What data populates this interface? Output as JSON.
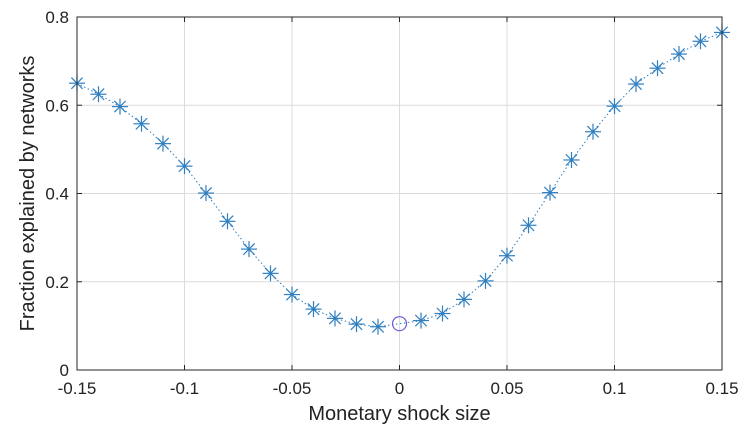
{
  "chart_data": {
    "type": "scatter",
    "title": "",
    "xlabel": "Monetary shock size",
    "ylabel": "Fraction explained by networks",
    "xlim": [
      -0.15,
      0.15
    ],
    "ylim": [
      0,
      0.8
    ],
    "x_ticks": [
      -0.15,
      -0.1,
      -0.05,
      0,
      0.05,
      0.1,
      0.15
    ],
    "x_tick_labels": [
      "-0.15",
      "-0.1",
      "-0.05",
      "0",
      "0.05",
      "0.1",
      "0.15"
    ],
    "y_ticks": [
      0,
      0.2,
      0.4,
      0.6,
      0.8
    ],
    "y_tick_labels": [
      "0",
      "0.2",
      "0.4",
      "0.6",
      "0.8"
    ],
    "grid": true,
    "legend": "none",
    "series": [
      {
        "marker": "asterisk",
        "line_style": "dotted",
        "color": "#2f7fc1",
        "x": [
          -0.15,
          -0.14,
          -0.13,
          -0.12,
          -0.11,
          -0.1,
          -0.09,
          -0.08,
          -0.07,
          -0.06,
          -0.05,
          -0.04,
          -0.03,
          -0.02,
          -0.01,
          0.01,
          0.02,
          0.03,
          0.04,
          0.05,
          0.06,
          0.07,
          0.08,
          0.09,
          0.1,
          0.11,
          0.12,
          0.13,
          0.14,
          0.15
        ],
        "y": [
          0.65,
          0.625,
          0.597,
          0.558,
          0.513,
          0.462,
          0.401,
          0.337,
          0.274,
          0.219,
          0.171,
          0.138,
          0.117,
          0.104,
          0.098,
          0.112,
          0.128,
          0.16,
          0.202,
          0.259,
          0.328,
          0.402,
          0.476,
          0.54,
          0.598,
          0.648,
          0.684,
          0.716,
          0.745,
          0.765
        ]
      }
    ],
    "highlight_point": {
      "x": 0,
      "y": 0.105,
      "marker": "circle",
      "color": "#6b5bd6"
    }
  }
}
